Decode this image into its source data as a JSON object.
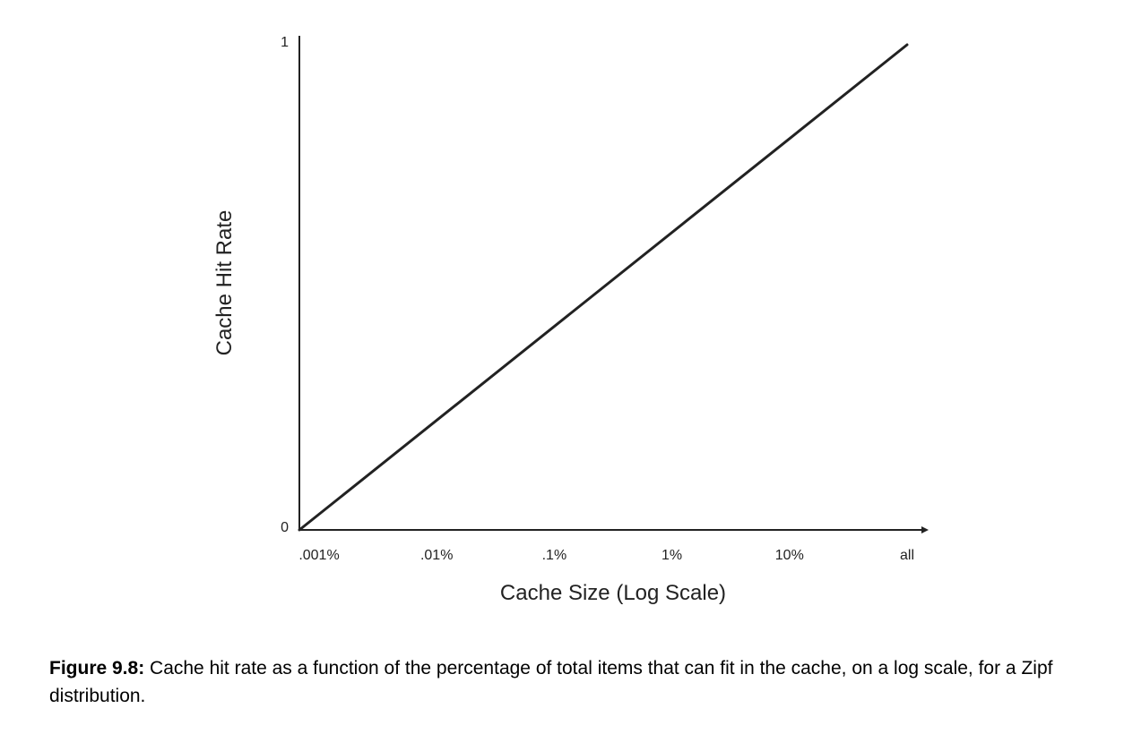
{
  "chart_data": {
    "type": "line",
    "xlabel": "Cache Size (Log Scale)",
    "ylabel": "Cache Hit Rate",
    "x_scale": "log",
    "x_ticks": [
      ".001%",
      ".01%",
      ".1%",
      "1%",
      "10%",
      "all"
    ],
    "y_ticks": [
      "0",
      "1"
    ],
    "ylim": [
      0,
      1
    ],
    "grid": false,
    "series": [
      {
        "x": [
          ".001%",
          "all"
        ],
        "y": [
          0,
          1
        ]
      }
    ],
    "colors": {
      "line": "#222222",
      "axis": "#222222",
      "text": "#222222"
    }
  },
  "caption": {
    "label": "Figure 9.8:",
    "text": " Cache hit rate as a function of the percentage of total items that can fit in the cache, on a log scale, for a Zipf distribution."
  }
}
